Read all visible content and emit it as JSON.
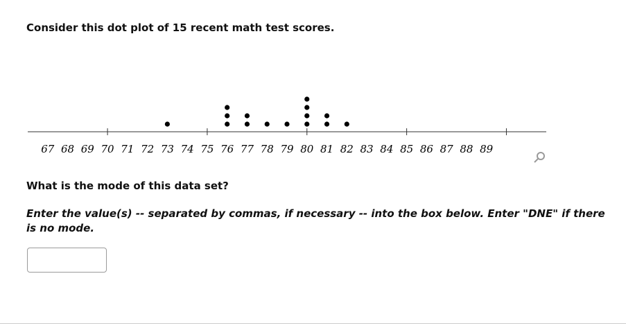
{
  "intro": "Consider this dot plot of 15 recent math test scores.",
  "chart_data": {
    "type": "dot",
    "values": [
      73,
      76,
      76,
      76,
      77,
      77,
      78,
      79,
      80,
      80,
      80,
      80,
      81,
      81,
      82
    ],
    "xlim": [
      66,
      92
    ],
    "xticks": [
      67,
      68,
      69,
      70,
      71,
      72,
      73,
      74,
      75,
      76,
      77,
      78,
      79,
      80,
      81,
      82,
      83,
      84,
      85,
      86,
      87,
      88,
      89
    ],
    "tick_marks": [
      70,
      75,
      80,
      85,
      90
    ],
    "color": "#000000"
  },
  "prompt": "What is the mode of this data set?",
  "instructions": "Enter the value(s) -- separated by commas, if necessary -- into the box below. Enter \"DNE\" if there is no mode."
}
